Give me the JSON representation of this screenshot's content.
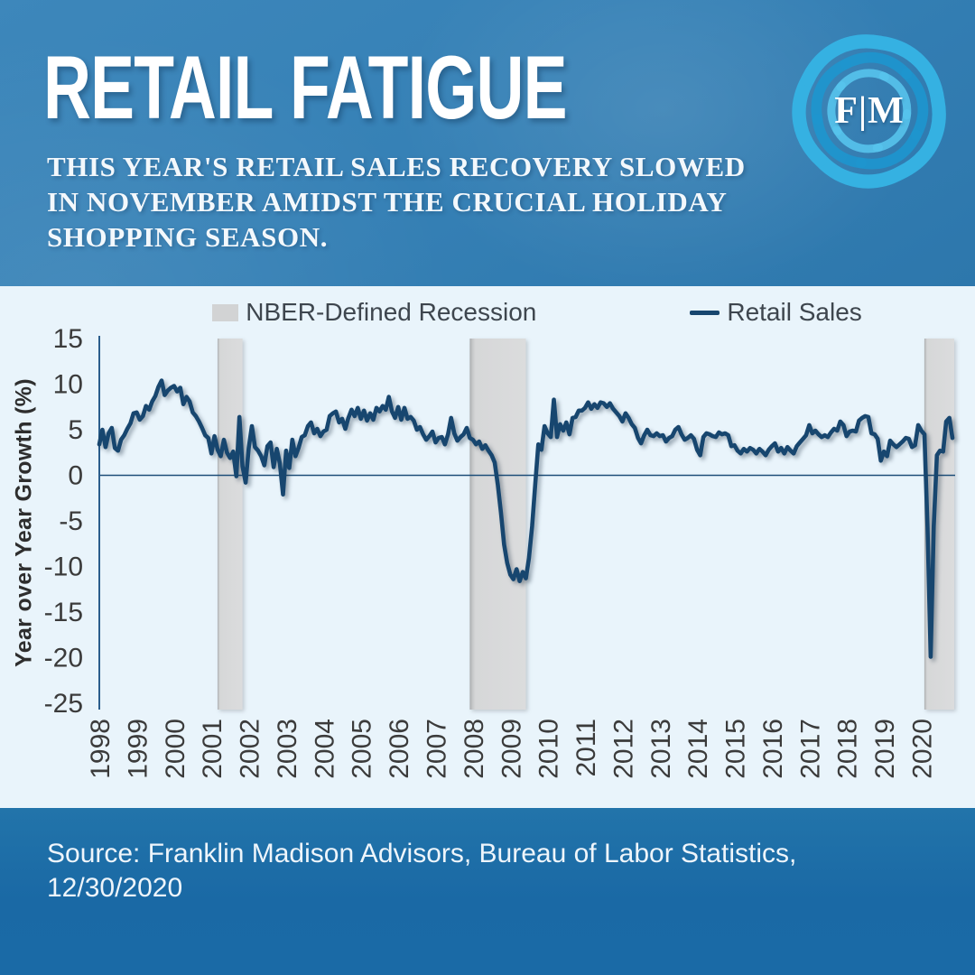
{
  "header": {
    "title": "RETAIL FATIGUE",
    "subtitle_lines": [
      "THIS YEAR'S RETAIL SALES RECOVERY SLOWED",
      "IN NOVEMBER AMIDST THE CRUCIAL HOLIDAY",
      "SHOPPING SEASON."
    ],
    "logo_text": "F|M"
  },
  "footer": {
    "line1": "Source: Franklin Madison Advisors, Bureau of Labor Statistics,",
    "line2": "12/30/2020"
  },
  "colors": {
    "header_blue": "#3681b6",
    "footer_blue": "#1a6aa6",
    "panel_bg": "#e9f4fb",
    "line_navy": "#17466f",
    "recession_gray": "#d9dadb",
    "logo_light_blue": "#35b1e2",
    "logo_deep_blue": "#1f95cd"
  },
  "chart_data": {
    "type": "line",
    "title": "",
    "xlabel": "",
    "ylabel": "Year over Year Growth (%)",
    "ylim": [
      -25,
      15
    ],
    "yticks": [
      15,
      10,
      5,
      0,
      -5,
      -10,
      -15,
      -20,
      -25
    ],
    "x_tick_years": [
      1998,
      1999,
      2000,
      2001,
      2002,
      2003,
      2004,
      2005,
      2006,
      2007,
      2008,
      2009,
      2010,
      2011,
      2012,
      2013,
      2014,
      2015,
      2016,
      2017,
      2018,
      2019,
      2020
    ],
    "grid": false,
    "legend_position": "top",
    "legend": [
      {
        "label": "NBER-Defined Recession",
        "type": "area",
        "color": "#d2d3d4"
      },
      {
        "label": "Retail Sales",
        "type": "line",
        "color": "#17466f"
      }
    ],
    "series": [
      {
        "name": "Retail Sales",
        "freq": "monthly",
        "start": "1998-01",
        "end": "2020-11",
        "values": [
          3.4,
          5.0,
          3.1,
          4.6,
          5.2,
          3.0,
          2.7,
          3.9,
          4.4,
          5.1,
          5.7,
          6.8,
          6.9,
          6.1,
          6.5,
          7.6,
          7.2,
          8.1,
          8.7,
          9.7,
          10.4,
          8.8,
          9.3,
          9.6,
          9.8,
          9.2,
          9.6,
          7.8,
          8.6,
          8.1,
          6.9,
          6.5,
          5.9,
          5.2,
          4.4,
          4.1,
          2.4,
          4.3,
          2.8,
          2.1,
          3.9,
          2.5,
          1.9,
          2.6,
          -0.1,
          6.4,
          1.0,
          -0.8,
          3.0,
          5.4,
          3.1,
          2.7,
          2.1,
          1.1,
          3.2,
          3.6,
          0.9,
          2.9,
          1.3,
          -2.1,
          2.7,
          0.8,
          3.9,
          2.1,
          3.0,
          4.2,
          4.4,
          5.4,
          5.8,
          4.6,
          5.1,
          4.3,
          4.8,
          5.0,
          6.5,
          6.8,
          7.0,
          5.8,
          6.2,
          5.1,
          6.3,
          7.2,
          6.5,
          7.4,
          6.2,
          7.1,
          6.0,
          6.8,
          6.1,
          7.4,
          7.0,
          7.6,
          7.2,
          8.6,
          7.0,
          6.3,
          7.5,
          6.1,
          7.4,
          6.2,
          6.4,
          6.0,
          5.0,
          5.3,
          4.5,
          3.9,
          4.3,
          4.8,
          3.6,
          4.1,
          4.2,
          3.4,
          4.5,
          6.3,
          4.6,
          3.8,
          4.2,
          4.5,
          5.2,
          4.1,
          3.9,
          3.4,
          3.7,
          2.9,
          3.3,
          2.7,
          2.2,
          1.4,
          -1.1,
          -4.1,
          -7.6,
          -9.6,
          -10.9,
          -11.4,
          -10.3,
          -11.6,
          -10.6,
          -11.3,
          -9.1,
          -5.6,
          -1.1,
          3.4,
          2.8,
          5.4,
          4.6,
          4.2,
          8.3,
          4.2,
          5.6,
          4.9,
          5.8,
          4.5,
          6.3,
          6.4,
          7.1,
          7.1,
          7.4,
          8.0,
          7.3,
          7.8,
          7.4,
          8.0,
          7.9,
          7.5,
          7.9,
          7.3,
          6.9,
          6.5,
          5.9,
          6.8,
          6.3,
          5.6,
          5.2,
          4.1,
          3.5,
          4.4,
          5.0,
          4.4,
          4.3,
          4.6,
          4.3,
          4.4,
          3.7,
          4.1,
          4.3,
          5.0,
          5.3,
          4.5,
          3.9,
          4.1,
          4.4,
          4.0,
          2.8,
          2.2,
          4.2,
          4.6,
          4.5,
          4.3,
          4.2,
          4.7,
          4.5,
          4.6,
          4.4,
          3.2,
          3.3,
          2.7,
          2.4,
          2.9,
          2.6,
          3.0,
          2.8,
          2.4,
          2.9,
          2.6,
          2.2,
          2.8,
          3.2,
          3.5,
          2.6,
          3.0,
          2.4,
          3.1,
          2.7,
          2.4,
          3.2,
          3.6,
          4.0,
          4.4,
          5.5,
          4.6,
          4.9,
          4.5,
          4.2,
          4.4,
          4.2,
          4.7,
          5.1,
          4.9,
          5.9,
          5.5,
          4.3,
          4.8,
          4.9,
          4.8,
          6.0,
          6.3,
          6.5,
          6.4,
          4.6,
          4.5,
          4.0,
          1.6,
          2.6,
          2.1,
          3.8,
          3.4,
          3.1,
          3.4,
          3.7,
          4.1,
          4.0,
          3.1,
          3.3,
          5.5,
          4.9,
          4.5,
          -5.7,
          -19.9,
          -5.6,
          2.2,
          2.7,
          2.6,
          5.9,
          6.3,
          4.1
        ]
      }
    ],
    "recession_bands_month_index": [
      {
        "start": 38,
        "end": 46,
        "label": "2001 recession"
      },
      {
        "start": 119,
        "end": 137,
        "label": "2008-09 recession"
      },
      {
        "start": 265,
        "end": 276,
        "label": "2020 recession"
      }
    ]
  }
}
